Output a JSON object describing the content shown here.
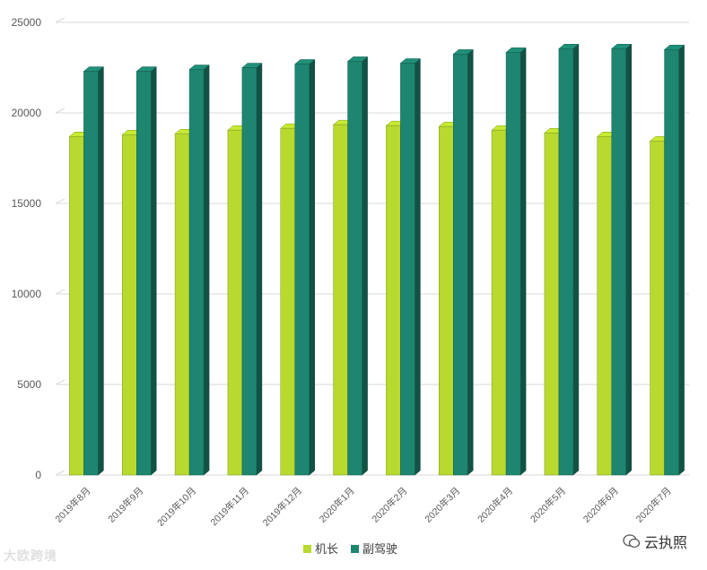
{
  "chart_data": {
    "type": "bar",
    "title": "",
    "xlabel": "",
    "ylabel": "",
    "ylim": [
      0,
      25000
    ],
    "yticks": [
      0,
      5000,
      10000,
      15000,
      20000,
      25000
    ],
    "grid": true,
    "legend_position": "bottom",
    "categories": [
      "2019年8月",
      "2019年9月",
      "2019年10月",
      "2019年11月",
      "2019年12月",
      "2020年1月",
      "2020年2月",
      "2020年3月",
      "2020年4月",
      "2020年5月",
      "2020年6月",
      "2020年7月"
    ],
    "series": [
      {
        "name": "机长",
        "color": "#b8d92e",
        "values": [
          18700,
          18800,
          18850,
          19050,
          19150,
          19350,
          19300,
          19250,
          19050,
          18900,
          18700,
          18450
        ]
      },
      {
        "name": "副驾驶",
        "color": "#1d8570",
        "values": [
          22300,
          22300,
          22400,
          22500,
          22700,
          22850,
          22750,
          23250,
          23350,
          23550,
          23550,
          23500
        ]
      }
    ]
  },
  "watermark": {
    "left": "大欧跨境",
    "right": "云执照"
  }
}
